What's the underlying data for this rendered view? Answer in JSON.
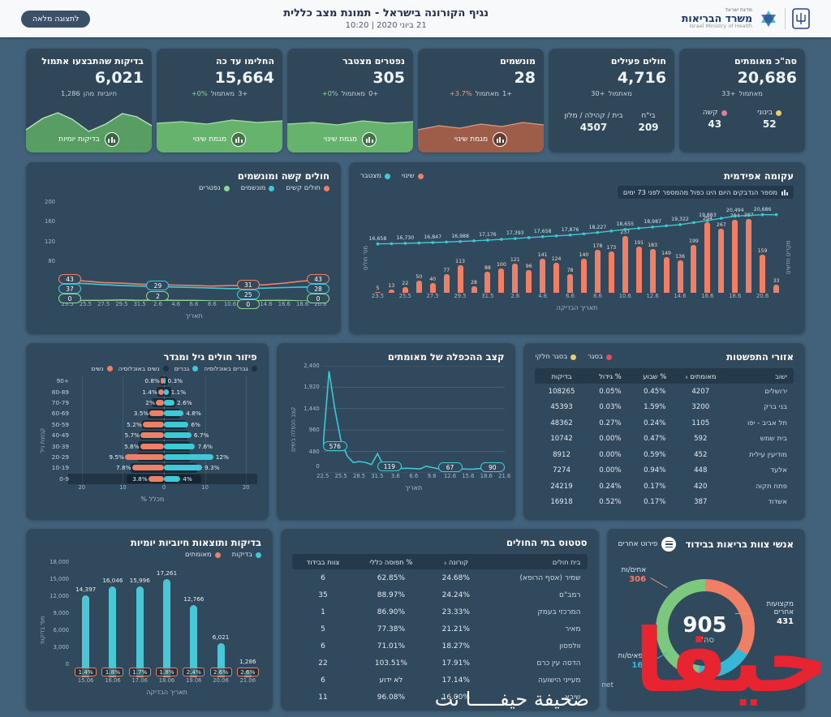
{
  "header": {
    "full_view_button": "לתצוגה מלאה",
    "title": "נגיף הקורונה בישראל - תמונת מצב כללית",
    "datetime": "21 ביוני 2020 | 10:20",
    "logo": {
      "state": "מדינת ישראל",
      "ministry": "משרד הבריאות",
      "ministry_en": "Israel Ministry of Health"
    }
  },
  "kpis": [
    {
      "title": "סה\"כ מאומתים",
      "value": "20,686",
      "change": {
        "parts": [
          "33+",
          "מאתמול"
        ]
      },
      "breakdown": [
        {
          "label": "בינוני",
          "value": "52",
          "color": "#e7cd6f"
        },
        {
          "label": "קשה",
          "value": "43",
          "color": "#de7f95"
        }
      ]
    },
    {
      "title": "חולים פעילים",
      "value": "4,716",
      "change": {
        "parts": [
          "30+",
          "מאתמול"
        ]
      },
      "breakdown": [
        {
          "label": "בי\"ח",
          "value": "209"
        },
        {
          "label": "בית / קהילה / מלון",
          "value": "4507"
        }
      ]
    },
    {
      "title": "מונשמים",
      "value": "28",
      "change": {
        "parts": [
          "+3.7%",
          "מאתמול",
          "1+"
        ],
        "cls": [
          "pct-warn",
          "",
          ""
        ]
      },
      "spark_label": "מגמת שינוי"
    },
    {
      "title": "נפטרים מצטבר",
      "value": "305",
      "change": {
        "parts": [
          "+0%",
          "מאתמול",
          "0+"
        ],
        "cls": [
          "pct-ok",
          "",
          ""
        ]
      },
      "spark_label": "מגמת שינוי"
    },
    {
      "title": "החלימו עד כה",
      "value": "15,664",
      "change": {
        "parts": [
          "+0%",
          "מאתמול",
          "3+"
        ],
        "cls": [
          "pct-ok",
          "",
          ""
        ]
      },
      "spark_label": "מגמת שינוי"
    },
    {
      "title": "בדיקות שהתבצעו אתמול",
      "value": "6,021",
      "change": {
        "parts": [
          "1,286",
          "מהן",
          "חיוביות"
        ]
      },
      "spark_label": "בדיקות יומיות"
    }
  ],
  "panels": {
    "epidemic": {
      "title": "עקומה אפידמית",
      "note": "מספר הנדבקים היום הינו כפול מהמספר לפני 73 ימים",
      "legend": [
        {
          "label": "שינוי",
          "color": "#ef8066"
        },
        {
          "label": "מצטבר",
          "color": "#3ec9d6"
        }
      ],
      "ylabel_left": "מס' חולים",
      "ylabel_right": "מקרים חדשים",
      "xlabel": "תאריך הבדיקה"
    },
    "severe": {
      "title": "חולים קשה ומונשמים",
      "legend": [
        {
          "label": "חולים קשים",
          "color": "#ef8066"
        },
        {
          "label": "מונשמים",
          "color": "#3ec9d6"
        },
        {
          "label": "נפטרים",
          "color": "#8fd694"
        }
      ],
      "xlabel": "תאריך"
    },
    "spread": {
      "title": "אזורי התפשטות",
      "legend": [
        {
          "label": "בסגר",
          "color": "#e84b5f"
        },
        {
          "label": "בסגר חלקי",
          "color": "#e7cd6f"
        }
      ]
    },
    "doubling": {
      "title": "קצב ההכפלה של מאומתים",
      "ylabel": "קצב הכפלה בימים",
      "xlabel": "תאריך"
    },
    "pyramid": {
      "title": "פיזור חולים גיל ומגדר",
      "legend": [
        {
          "label": "גברים באוכלוסיה",
          "color": "#1f3142"
        },
        {
          "label": "גברים",
          "color": "#3ec9d6"
        },
        {
          "label": "נשים באוכלוסיה",
          "color": "#1f3142"
        },
        {
          "label": "נשים",
          "color": "#ef8066"
        }
      ],
      "ylabel": "קבוצת גיל",
      "xlabel": "% מכלל"
    },
    "tests": {
      "title": "בדיקות ותוצאות חיוביות יומיות",
      "legend": [
        {
          "label": "בדיקות",
          "color": "#3ec9d6"
        },
        {
          "label": "מאומתים",
          "color": "#ef8066"
        }
      ],
      "ylabel": "מס' בדיקות",
      "xlabel": "תאריך הבדיקה"
    },
    "hospitals": {
      "title": "סטטוס בתי החולים"
    },
    "staff": {
      "title": "אנשי צוות בריאות בבידוד",
      "button": "פירוט אחרים",
      "total_value": "905",
      "total_label": "סה\"כ"
    }
  },
  "tables": {
    "spread": {
      "columns": [
        "ישוב",
        "מאומתים",
        "% שבוע",
        "% גידול",
        "בדיקות"
      ],
      "sort_col": 1,
      "rows": [
        [
          "ירושלים",
          "4207",
          "0.45%",
          "0.05%",
          "108265"
        ],
        [
          "בני ברק",
          "3200",
          "1.59%",
          "0.03%",
          "45393"
        ],
        [
          "תל אביב - יפו",
          "1105",
          "0.24%",
          "0.27%",
          "48362"
        ],
        [
          "בית שמש",
          "592",
          "0.47%",
          "0.00%",
          "10742"
        ],
        [
          "מודיעין עילית",
          "452",
          "0.59%",
          "0.00%",
          "8912"
        ],
        [
          "אלעד",
          "448",
          "0.94%",
          "0.00%",
          "7274"
        ],
        [
          "פתח תקוה",
          "420",
          "0.17%",
          "0.24%",
          "24219"
        ],
        [
          "אשדוד",
          "387",
          "0.17%",
          "0.52%",
          "16918"
        ]
      ]
    },
    "hospitals": {
      "columns": [
        "בית חולים",
        "קורונה",
        "% תפוסה כללי",
        "צוות בבידוד"
      ],
      "sort_col": 1,
      "rows": [
        [
          "שמיר (אסף הרופא)",
          "24.68%",
          "62.85%",
          "6"
        ],
        [
          "רמב\"ם",
          "24.24%",
          "88.97%",
          "35"
        ],
        [
          "המרכזי בעמק",
          "23.33%",
          "86.90%",
          "1"
        ],
        [
          "מאיר",
          "21.21%",
          "77.38%",
          "5"
        ],
        [
          "וולפסון",
          "18.27%",
          "71.01%",
          "6"
        ],
        [
          "הדסה עין כרם",
          "17.91%",
          "103.51%",
          "22"
        ],
        [
          "מעייני הישועה",
          "17.14%",
          "לא ידוע",
          "6"
        ],
        [
          "שיבא",
          "16.00%",
          "96.08%",
          "11"
        ]
      ]
    }
  },
  "chart_data": [
    {
      "id": "epidemic",
      "type": "bar",
      "title": "עקומה אפידמית",
      "x_ticks": [
        "23.5",
        "25.5",
        "27.5",
        "29.5",
        "31.5",
        "2.6",
        "4.6",
        "6.6",
        "8.6",
        "10.6",
        "12.6",
        "14.6",
        "16.6",
        "18.6",
        "20.6"
      ],
      "bars": {
        "name": "שינוי",
        "color": "#ef8066",
        "values": [
          5,
          13,
          22,
          50,
          40,
          77,
          113,
          28,
          88,
          100,
          121,
          96,
          141,
          124,
          78,
          140,
          178,
          173,
          237,
          191,
          183,
          149,
          136,
          199,
          294,
          267,
          304,
          307,
          159,
          33
        ]
      },
      "line": {
        "name": "מצטבר",
        "color": "#3ec9d6",
        "values": [
          16658,
          16730,
          16847,
          16988,
          17176,
          17393,
          17658,
          17876,
          18227,
          18655,
          18987,
          19322,
          19883,
          20494,
          20686
        ],
        "labels": [
          "16,658",
          "16,730",
          "16,847",
          "16,988",
          "17,176",
          "17,393",
          "17,658",
          "17,876",
          "18,227",
          "18,655",
          "18,987",
          "19,322",
          "19,883",
          "20,494",
          "20,686"
        ]
      },
      "bar_max": 330,
      "xlabel": "תאריך הבדיקה"
    },
    {
      "id": "severe",
      "type": "line",
      "x_ticks": [
        "23.5",
        "25.5",
        "27.5",
        "29.5",
        "31.5",
        "2.6",
        "4.6",
        "6.6",
        "8.6",
        "10.6",
        "12.6",
        "14.6",
        "16.6",
        "18.6",
        "20.6"
      ],
      "y_ticks": [
        200,
        160,
        120,
        80
      ],
      "y_max": 210,
      "series": [
        {
          "name": "חולים קשים",
          "color": "#ef8066",
          "values": [
            43,
            40,
            37,
            36,
            34,
            33,
            32,
            31,
            30,
            31,
            31,
            33,
            36,
            40,
            43
          ]
        },
        {
          "name": "מונשמים",
          "color": "#3ec9d6",
          "values": [
            37,
            35,
            33,
            31,
            30,
            29,
            28,
            27,
            26,
            25,
            25,
            26,
            27,
            28,
            28
          ]
        },
        {
          "name": "נפטרים",
          "color": "#8fd694",
          "values": [
            0,
            1,
            1,
            2,
            1,
            2,
            1,
            1,
            0,
            0,
            0,
            1,
            1,
            0,
            0
          ]
        }
      ],
      "callouts": [
        {
          "i": 0,
          "items": [
            {
              "s": 0,
              "v": "43"
            },
            {
              "s": 1,
              "v": "37"
            },
            {
              "s": 2,
              "v": "0"
            }
          ]
        },
        {
          "i": 5,
          "items": [
            {
              "s": 1,
              "v": "29"
            },
            {
              "s": 2,
              "v": "2"
            }
          ]
        },
        {
          "i": 10,
          "items": [
            {
              "s": 0,
              "v": "31"
            },
            {
              "s": 1,
              "v": "25"
            },
            {
              "s": 2,
              "v": "0"
            }
          ]
        },
        {
          "i": 14,
          "items": [
            {
              "s": 0,
              "v": "43"
            },
            {
              "s": 1,
              "v": "28"
            },
            {
              "s": 2,
              "v": "0"
            }
          ]
        }
      ]
    },
    {
      "id": "doubling",
      "type": "line",
      "color": "#3ec9d6",
      "x_ticks": [
        "22.5",
        "25.5",
        "28.5",
        "31.5",
        "3.6",
        "6.6",
        "9.6",
        "12.6",
        "15.6",
        "18.6",
        "21.6"
      ],
      "y_ticks": [
        "2,400",
        "1,920",
        "1,440",
        "960",
        "480",
        "0"
      ],
      "y_max": 2400,
      "values": [
        576,
        2280,
        1400,
        700,
        380,
        230,
        255,
        235,
        185,
        430,
        160,
        119,
        110,
        98,
        104,
        96,
        88,
        150,
        120,
        95,
        80,
        67,
        78,
        88,
        82,
        86,
        96,
        104,
        92,
        86,
        90
      ],
      "callouts": [
        {
          "i": 0,
          "v": "576"
        },
        {
          "i": 11,
          "v": "119"
        },
        {
          "i": 21,
          "v": "67"
        },
        {
          "i": 30,
          "v": "90"
        }
      ]
    },
    {
      "id": "pyramid",
      "type": "bar",
      "age_groups": [
        "90+",
        "80-89",
        "70-79",
        "60-69",
        "50-59",
        "40-49",
        "30-39",
        "20-29",
        "10-19",
        "0-9"
      ],
      "women": {
        "color": "#ef8066",
        "values": [
          0.8,
          1.4,
          2,
          3.5,
          5.2,
          5.7,
          5.8,
          9.5,
          7.8,
          3.8
        ],
        "labels": [
          "0.8%",
          "1.4%",
          "2%",
          "3.5%",
          "5.2%",
          "5.7%",
          "5.8%",
          "9.5%",
          "7.8%",
          "3.8%"
        ]
      },
      "men": {
        "color": "#3ec9d6",
        "values": [
          0.3,
          1.1,
          2.6,
          4.8,
          6,
          6.7,
          7.6,
          12,
          9.3,
          4
        ],
        "labels": [
          "0.3%",
          "1.1%",
          "2.6%",
          "4.8%",
          "6%",
          "6.7%",
          "7.6%",
          "12%",
          "9.3%",
          "4%"
        ]
      },
      "population": [
        0.9,
        1.7,
        2.9,
        4.0,
        5.3,
        6.0,
        6.3,
        6.6,
        8.1,
        9.0
      ],
      "x_ticks": [
        "20",
        "10",
        "0",
        "10",
        "20"
      ],
      "x_max": 20
    },
    {
      "id": "tests",
      "type": "bar",
      "color": "#49c7d4",
      "x_ticks": [
        "15.06",
        "16.06",
        "17.06",
        "18.06",
        "19.06",
        "20.06",
        "21.06"
      ],
      "values": [
        14397,
        16046,
        15996,
        17261,
        12766,
        6021,
        1286
      ],
      "labels": [
        "14,397",
        "16,046",
        "15,996",
        "17,261",
        "12,766",
        "6,021",
        "1,286"
      ],
      "pct": [
        "1.4%",
        "1.8%",
        "1.7%",
        "1.8%",
        "2.4%",
        "2.6%",
        "2.6%"
      ],
      "y_ticks": [
        "18,000",
        "15,000",
        "12,000",
        "9,000",
        "6,000",
        "3,000",
        "0"
      ],
      "y_max": 18000
    },
    {
      "id": "staff",
      "type": "pie",
      "total": 905,
      "segments": [
        {
          "label": "אחים/ות",
          "value": 306,
          "color": "#ef8066"
        },
        {
          "label": "רופאים/ות",
          "value": 168,
          "color": "#38b6d8"
        },
        {
          "label": "מקצועות אחרים",
          "value": 431,
          "color": "#7dc87f"
        }
      ]
    }
  ],
  "watermark": {
    "big": "حيفا",
    "line": "صحيفة حيفـــــا نت",
    "net": "net"
  }
}
